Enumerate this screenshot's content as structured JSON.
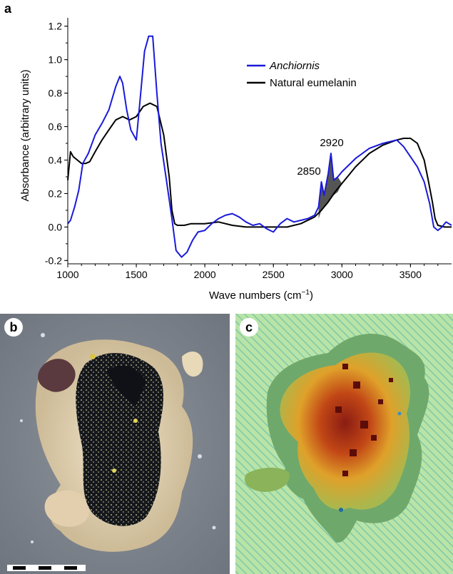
{
  "panels": {
    "a": "a",
    "b": "b",
    "c": "c"
  },
  "chart_data": {
    "type": "line",
    "xlabel": "Wave numbers (cm",
    "xlabel_sup": "−1",
    "xlabel_close": ")",
    "ylabel": "Absorbance (arbitrary units)",
    "xlim": [
      1000,
      3800
    ],
    "ylim": [
      -0.22,
      1.25
    ],
    "xticks": [
      1000,
      1500,
      2000,
      2500,
      3000,
      3500
    ],
    "xtick_labels": [
      "1000",
      "1500",
      "2000",
      "2500",
      "3000",
      "3500"
    ],
    "yticks": [
      -0.2,
      0.0,
      0.2,
      0.4,
      0.6,
      0.8,
      1.0,
      1.2
    ],
    "ytick_labels": [
      "-0.2",
      "0.0",
      "0.2",
      "0.4",
      "0.6",
      "0.8",
      "1.0",
      "1.2"
    ],
    "legend_position": "top-right",
    "annotations": [
      {
        "text": "2850",
        "x": 2850,
        "y": 0.27
      },
      {
        "text": "2920",
        "x": 2920,
        "y": 0.44
      }
    ],
    "series": [
      {
        "name": "Anchiornis",
        "color": "#1a1adb",
        "italic": true,
        "x": [
          1000,
          1020,
          1050,
          1080,
          1110,
          1150,
          1200,
          1250,
          1300,
          1350,
          1380,
          1400,
          1430,
          1460,
          1500,
          1530,
          1560,
          1590,
          1620,
          1650,
          1680,
          1720,
          1760,
          1790,
          1830,
          1870,
          1910,
          1950,
          2000,
          2050,
          2100,
          2150,
          2200,
          2250,
          2300,
          2350,
          2400,
          2450,
          2500,
          2550,
          2600,
          2650,
          2700,
          2750,
          2800,
          2830,
          2850,
          2870,
          2900,
          2920,
          2940,
          2970,
          3000,
          3050,
          3100,
          3200,
          3300,
          3400,
          3450,
          3500,
          3550,
          3600,
          3640,
          3670,
          3700,
          3730,
          3760,
          3800
        ],
        "y": [
          0.02,
          0.04,
          0.12,
          0.22,
          0.38,
          0.44,
          0.55,
          0.62,
          0.7,
          0.84,
          0.9,
          0.86,
          0.7,
          0.58,
          0.52,
          0.78,
          1.05,
          1.14,
          1.14,
          0.8,
          0.5,
          0.28,
          0.05,
          -0.14,
          -0.18,
          -0.15,
          -0.08,
          -0.03,
          -0.02,
          0.02,
          0.05,
          0.07,
          0.08,
          0.06,
          0.03,
          0.01,
          0.02,
          -0.01,
          -0.03,
          0.02,
          0.05,
          0.03,
          0.04,
          0.05,
          0.07,
          0.12,
          0.27,
          0.19,
          0.32,
          0.44,
          0.28,
          0.3,
          0.33,
          0.37,
          0.41,
          0.47,
          0.5,
          0.52,
          0.48,
          0.42,
          0.36,
          0.27,
          0.14,
          0.0,
          -0.02,
          0.0,
          0.03,
          0.01
        ]
      },
      {
        "name": "Natural eumelanin",
        "color": "#000000",
        "italic": false,
        "x": [
          1000,
          1020,
          1040,
          1070,
          1100,
          1130,
          1160,
          1200,
          1250,
          1300,
          1350,
          1400,
          1450,
          1500,
          1550,
          1600,
          1650,
          1700,
          1740,
          1760,
          1780,
          1800,
          1850,
          1900,
          2000,
          2100,
          2200,
          2300,
          2400,
          2500,
          2600,
          2700,
          2800,
          2850,
          2900,
          2950,
          3000,
          3050,
          3100,
          3200,
          3300,
          3400,
          3450,
          3500,
          3550,
          3600,
          3630,
          3660,
          3680,
          3700,
          3750,
          3800
        ],
        "y": [
          0.28,
          0.45,
          0.42,
          0.4,
          0.38,
          0.38,
          0.39,
          0.45,
          0.52,
          0.58,
          0.64,
          0.66,
          0.64,
          0.66,
          0.72,
          0.74,
          0.72,
          0.55,
          0.3,
          0.1,
          0.02,
          0.01,
          0.01,
          0.02,
          0.02,
          0.03,
          0.01,
          0.0,
          0.0,
          0.0,
          0.0,
          0.02,
          0.06,
          0.1,
          0.15,
          0.21,
          0.26,
          0.31,
          0.36,
          0.44,
          0.49,
          0.52,
          0.53,
          0.53,
          0.5,
          0.4,
          0.28,
          0.15,
          0.05,
          0.01,
          0.0,
          0.0
        ]
      }
    ],
    "shaded_region": {
      "color": "#555555",
      "x": [
        2830,
        2850,
        2870,
        2900,
        2920,
        2940,
        2970,
        3000
      ],
      "y_top": [
        0.12,
        0.27,
        0.19,
        0.32,
        0.44,
        0.28,
        0.3,
        0.26
      ],
      "y_bottom": [
        0.05,
        0.1,
        0.12,
        0.15,
        0.17,
        0.19,
        0.21,
        0.26
      ]
    }
  },
  "scale_bar": {
    "segments": 4
  }
}
